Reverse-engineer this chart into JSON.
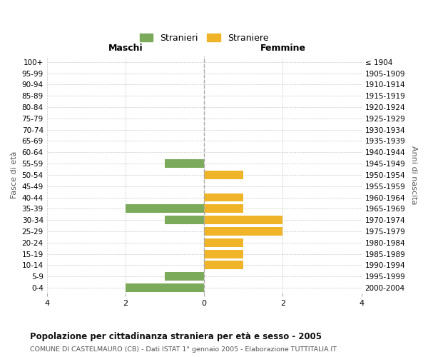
{
  "age_groups": [
    "100+",
    "95-99",
    "90-94",
    "85-89",
    "80-84",
    "75-79",
    "70-74",
    "65-69",
    "60-64",
    "55-59",
    "50-54",
    "45-49",
    "40-44",
    "35-39",
    "30-34",
    "25-29",
    "20-24",
    "15-19",
    "10-14",
    "5-9",
    "0-4"
  ],
  "birth_years": [
    "≤ 1904",
    "1905-1909",
    "1910-1914",
    "1915-1919",
    "1920-1924",
    "1925-1929",
    "1930-1934",
    "1935-1939",
    "1940-1944",
    "1945-1949",
    "1950-1954",
    "1955-1959",
    "1960-1964",
    "1965-1969",
    "1970-1974",
    "1975-1979",
    "1980-1984",
    "1985-1989",
    "1990-1994",
    "1995-1999",
    "2000-2004"
  ],
  "maschi": [
    0,
    0,
    0,
    0,
    0,
    0,
    0,
    0,
    0,
    1,
    0,
    0,
    0,
    2,
    1,
    0,
    0,
    0,
    0,
    1,
    2
  ],
  "femmine": [
    0,
    0,
    0,
    0,
    0,
    0,
    0,
    0,
    0,
    0,
    1,
    0,
    1,
    1,
    2,
    2,
    1,
    1,
    1,
    0,
    0
  ],
  "color_maschi": "#7aaa5a",
  "color_femmine": "#f0b429",
  "title": "Popolazione per cittadinanza straniera per età e sesso - 2005",
  "subtitle": "COMUNE DI CASTELMAURO (CB) - Dati ISTAT 1° gennaio 2005 - Elaborazione TUTTITALIA.IT",
  "label_maschi": "Maschi",
  "label_femmine": "Femmine",
  "ylabel_left": "Fasce di età",
  "ylabel_right": "Anni di nascita",
  "legend_maschi": "Stranieri",
  "legend_femmine": "Straniere",
  "xlim": 4,
  "background_color": "#ffffff",
  "grid_color": "#cccccc",
  "bar_height": 0.75
}
